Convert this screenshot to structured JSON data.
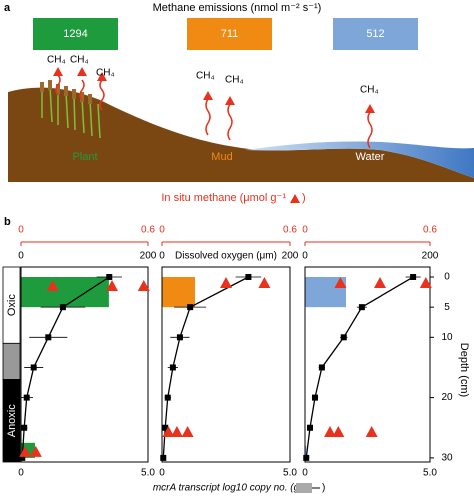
{
  "panel_a": {
    "letter": "a",
    "title": "Methane emissions (nmol m⁻² s⁻¹)",
    "emissions": [
      {
        "value": 1294,
        "color": "#1e9b3c"
      },
      {
        "value": 711,
        "color": "#f08a12"
      },
      {
        "value": 512,
        "color": "#7ea6d8"
      }
    ],
    "gas": "CH₄",
    "sites": [
      "Plant",
      "Mud",
      "Water"
    ],
    "methane_label": "In situ methane (μmol g⁻¹",
    "close": ")"
  },
  "panel_b": {
    "letter": "b"
  },
  "chart_data": [
    {
      "type": "depth-profile",
      "ylim": [
        -1.66,
        30.68
      ],
      "xlim": [
        0,
        5
      ],
      "xticks": [
        0,
        {
          "value": 5,
          "label": "5.0"
        }
      ],
      "x2lim": [
        0,
        0.6
      ],
      "x2ticks": [
        0,
        0.6
      ],
      "x3lim": [
        0,
        200
      ],
      "x3ticks": [
        0,
        200
      ],
      "zones": [
        {
          "label": "Oxic",
          "from": -1.66,
          "to": 11,
          "color": "#ffffff"
        },
        {
          "from": 11,
          "to": 17,
          "color": "#999999"
        },
        {
          "label": "Anoxic",
          "from": 17,
          "to": 30.68,
          "color": "#000000"
        }
      ],
      "bars": {
        "color": "#1e9b3c",
        "from": [
          0,
          27.5
        ],
        "to": [
          5,
          30
        ],
        "values": [
          3.46,
          0.55
        ]
      },
      "oxygen": {
        "depths": [
          0,
          5,
          10,
          15,
          20,
          25,
          30
        ],
        "values": [
          139,
          66,
          43,
          20,
          9,
          5,
          2
        ],
        "errors": [
          20,
          35,
          30,
          15,
          10,
          5,
          2
        ]
      },
      "methane": {
        "color": "#e8321e",
        "depths": [
          1.5,
          1.5,
          1.5,
          29,
          29
        ],
        "values": [
          0.15,
          0.43,
          0.58,
          0.02,
          0.07
        ]
      }
    },
    {
      "type": "depth-profile",
      "ylim": [
        -1.66,
        30.68
      ],
      "xlim": [
        0,
        5
      ],
      "xticks": [
        0,
        {
          "value": 5,
          "label": "5.0"
        }
      ],
      "x2lim": [
        0,
        0.6
      ],
      "x2ticks": [
        0,
        0.6
      ],
      "x3lim": [
        0,
        200
      ],
      "x3ticks": [
        0,
        200
      ],
      "x3label": "Dissolved oxygen (μm)",
      "xlabel": "mcrA transcript log10 copy no. (g",
      "bars": {
        "color": "#f08a12",
        "from": [
          0
        ],
        "to": [
          5
        ],
        "values": [
          1.29
        ]
      },
      "oxygen": {
        "depths": [
          0,
          5,
          10,
          15,
          20,
          25,
          30
        ],
        "values": [
          135,
          44,
          28,
          17,
          9,
          5,
          2
        ],
        "errors": [
          20,
          25,
          15,
          8,
          5,
          3,
          2
        ]
      },
      "methane": {
        "color": "#e8321e",
        "depths": [
          1,
          1,
          25.7,
          25.7,
          25.7
        ],
        "values": [
          0.3,
          0.48,
          0.03,
          0.07,
          0.12
        ]
      }
    },
    {
      "type": "depth-profile",
      "ylim": [
        -1.66,
        30.68
      ],
      "xlim": [
        0,
        5
      ],
      "xticks": [
        0,
        {
          "value": 5,
          "label": "5.0"
        }
      ],
      "x2lim": [
        0,
        0.6
      ],
      "x2ticks": [
        0,
        0.6
      ],
      "x3lim": [
        0,
        200
      ],
      "x3ticks": [
        0,
        200
      ],
      "yticks": [
        0,
        5,
        10,
        20,
        30
      ],
      "ylabel": "Depth (cm)",
      "bars": {
        "color": "#7ea6d8",
        "from": [
          0,
          28
        ],
        "to": [
          5,
          30
        ],
        "values": [
          1.64,
          0.05
        ]
      },
      "oxygen": {
        "depths": [
          0,
          5,
          10,
          15,
          20,
          25,
          30
        ],
        "values": [
          173,
          91,
          62,
          27,
          16,
          8,
          2
        ],
        "errors": [
          12,
          8,
          6,
          5,
          5,
          3,
          2
        ]
      },
      "methane": {
        "color": "#e8321e",
        "depths": [
          1,
          1,
          1,
          25.7,
          25.7,
          25.7
        ],
        "values": [
          0.17,
          0.36,
          0.58,
          0.12,
          0.16,
          0.32
        ]
      }
    }
  ]
}
